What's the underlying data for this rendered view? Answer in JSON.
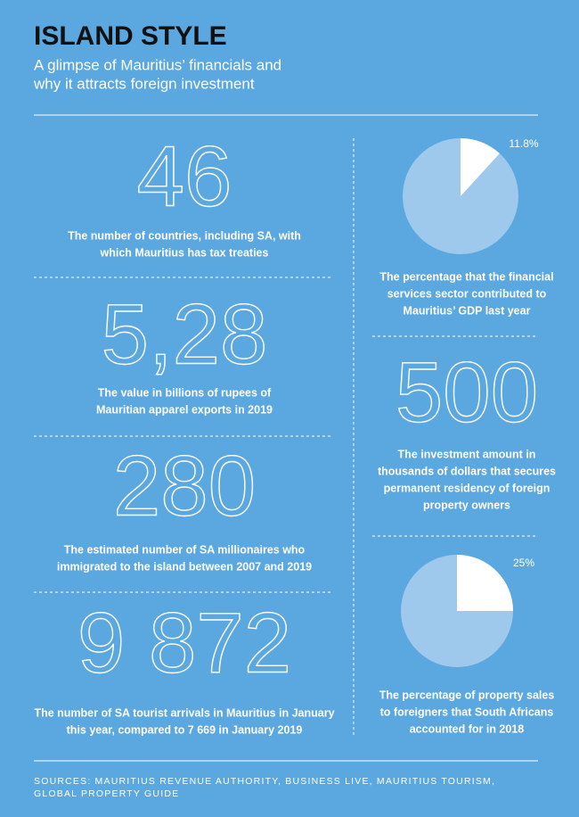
{
  "header": {
    "title": "ISLAND STYLE",
    "subtitle": [
      "A glimpse of Mauritius’ financials and",
      "why it attracts foreign investment"
    ]
  },
  "stats": [
    {
      "number": "46",
      "description": [
        "The number of countries, including SA, with",
        "which Mauritius has tax treaties"
      ]
    },
    {
      "number": "5,28",
      "description": [
        "The value in billions of rupees of",
        "Mauritian apparel exports in 2019"
      ]
    },
    {
      "number": "280",
      "description": [
        "The estimated number of SA millionaires who",
        "immigrated to the island between 2007 and 2019"
      ]
    },
    {
      "number": "9 872",
      "description": [
        "The number of SA tourist arrivals in Mauritius in January",
        "this year, compared to 7 669 in January 2019"
      ]
    },
    {
      "number": "500",
      "description": [
        "The investment amount in",
        "thousands of dollars that secures",
        "permanent residency of foreign",
        "property owners"
      ]
    }
  ],
  "pies": [
    {
      "value": 11.8,
      "value_label": "11.8%",
      "description": [
        "The percentage that the financial",
        "services sector contributed to",
        "Mauritius’ GDP last year"
      ]
    },
    {
      "value": 25,
      "value_label": "25%",
      "description": [
        "The percentage of property sales",
        "to foreigners that South Africans",
        "accounted for in 2018"
      ]
    }
  ],
  "sources": [
    "SOURCES: MAURITIUS REVENUE AUTHORITY, BUSINESS LIVE, MAURITIUS TOURISM,",
    "GLOBAL PROPERTY GUIDE"
  ]
}
